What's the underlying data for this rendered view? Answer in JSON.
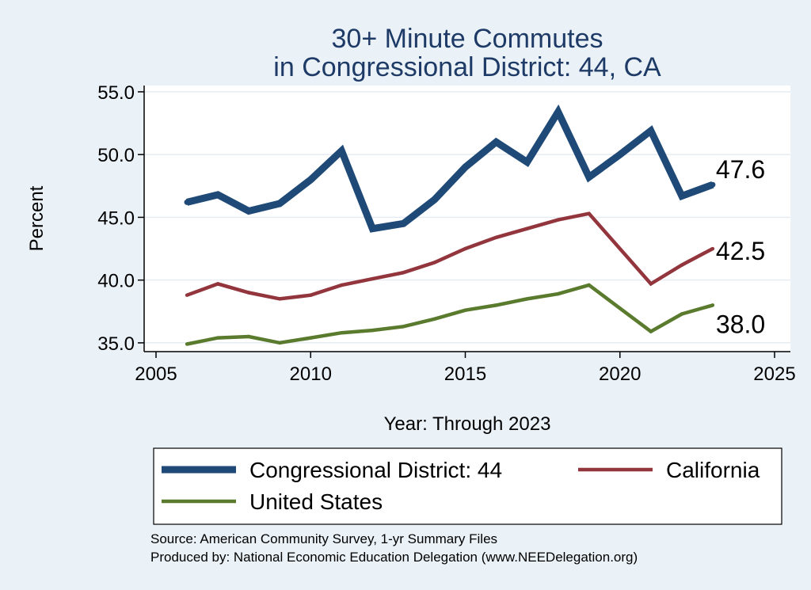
{
  "chart_data": {
    "type": "line",
    "title_lines": [
      "30+ Minute Commutes",
      "in Congressional District:  44, CA"
    ],
    "xlabel": "Year: Through 2023",
    "ylabel": "Percent",
    "xlim": [
      2005,
      2025
    ],
    "ylim": [
      34.3,
      55.5
    ],
    "x_ticks": [
      2005,
      2010,
      2015,
      2020,
      2025
    ],
    "y_ticks": [
      35.0,
      40.0,
      45.0,
      50.0,
      55.0
    ],
    "y_tick_labels": [
      "35.0",
      "40.0",
      "45.0",
      "50.0",
      "55.0"
    ],
    "grid": true,
    "legend_position": "bottom",
    "series": [
      {
        "name": "Congressional District:  44",
        "color": "#1f4a78",
        "x": [
          2006,
          2007,
          2008,
          2009,
          2010,
          2011,
          2012,
          2013,
          2014,
          2015,
          2016,
          2017,
          2018,
          2019,
          2020,
          2021,
          2022,
          2023
        ],
        "values": [
          46.2,
          46.8,
          45.5,
          46.1,
          48.0,
          50.3,
          44.1,
          44.5,
          46.4,
          49.0,
          51.0,
          49.4,
          53.4,
          48.2,
          50.0,
          51.9,
          46.7,
          47.6
        ],
        "end_label": "47.6"
      },
      {
        "name": "California",
        "color": "#92353c",
        "x": [
          2006,
          2007,
          2008,
          2009,
          2010,
          2011,
          2012,
          2013,
          2014,
          2015,
          2016,
          2017,
          2018,
          2019,
          2021,
          2022,
          2023
        ],
        "values": [
          38.8,
          39.7,
          39.0,
          38.5,
          38.8,
          39.6,
          40.1,
          40.6,
          41.4,
          42.5,
          43.4,
          44.1,
          44.8,
          45.3,
          39.7,
          41.2,
          42.5
        ],
        "end_label": "42.5"
      },
      {
        "name": "United States",
        "color": "#5a7a2e",
        "x": [
          2006,
          2007,
          2008,
          2009,
          2010,
          2011,
          2012,
          2013,
          2014,
          2015,
          2016,
          2017,
          2018,
          2019,
          2021,
          2022,
          2023
        ],
        "values": [
          34.9,
          35.4,
          35.5,
          35.0,
          35.4,
          35.8,
          36.0,
          36.3,
          36.9,
          37.6,
          38.0,
          38.5,
          38.9,
          39.6,
          35.9,
          37.3,
          38.0
        ],
        "end_label": "38.0"
      }
    ],
    "source_lines": [
      "Source: American Community Survey, 1-yr Summary Files",
      "Produced by: National Economic Education Delegation (www.NEEDelegation.org)"
    ]
  }
}
